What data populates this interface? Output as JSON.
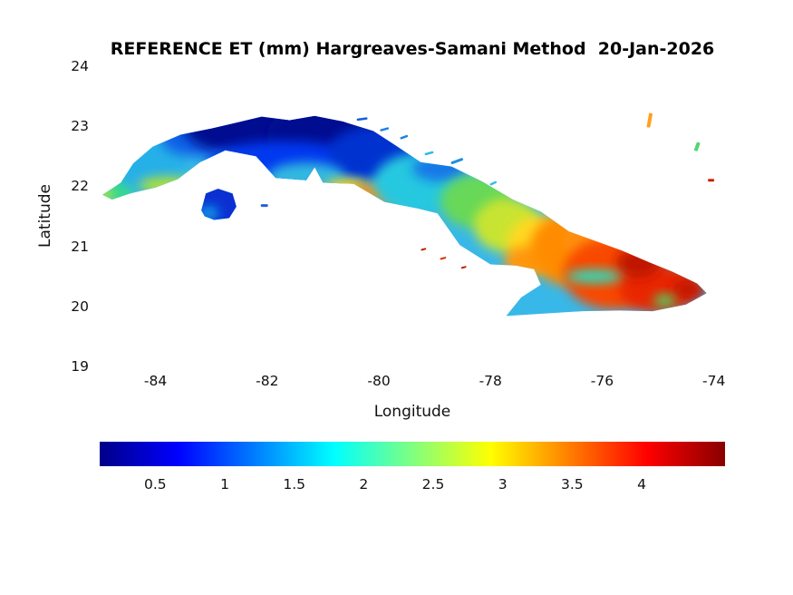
{
  "figure": {
    "title": "REFERENCE ET (mm) Hargreaves-Samani Method  20-Jan-2026",
    "xlabel": "Longitude",
    "ylabel": "Latitude"
  },
  "chart_data": {
    "type": "heatmap",
    "title": "REFERENCE ET (mm) Hargreaves-Samani Method  20-Jan-2026",
    "date_shown": "20-Jan-2026",
    "xlabel": "Longitude",
    "ylabel": "Latitude",
    "xlim": [
      -85.0,
      -73.8
    ],
    "ylim": [
      19,
      24
    ],
    "xticks": [
      -84,
      -82,
      -80,
      -78,
      -76,
      -74
    ],
    "yticks": [
      24,
      23,
      22,
      21,
      20,
      19
    ],
    "grid": false,
    "colorbar": {
      "orientation": "horizontal",
      "vmin": 0.1,
      "vmax": 4.6,
      "ticks": [
        0.5,
        1,
        1.5,
        2,
        2.5,
        3,
        3.5,
        4
      ],
      "colormap": "jet",
      "stops": [
        {
          "f": 0.0,
          "color": "#000089"
        },
        {
          "f": 0.125,
          "color": "#0000ff"
        },
        {
          "f": 0.375,
          "color": "#00ffff"
        },
        {
          "f": 0.625,
          "color": "#ffff00"
        },
        {
          "f": 0.875,
          "color": "#ff0000"
        },
        {
          "f": 1.0,
          "color": "#890000"
        }
      ]
    },
    "outline": {
      "cuba": [
        [
          -84.95,
          21.86
        ],
        [
          -84.62,
          22.06
        ],
        [
          -84.4,
          22.38
        ],
        [
          -84.05,
          22.66
        ],
        [
          -83.55,
          22.86
        ],
        [
          -83.0,
          22.96
        ],
        [
          -82.55,
          23.06
        ],
        [
          -82.1,
          23.16
        ],
        [
          -81.6,
          23.1
        ],
        [
          -81.15,
          23.17
        ],
        [
          -80.65,
          23.08
        ],
        [
          -80.1,
          22.92
        ],
        [
          -79.7,
          22.68
        ],
        [
          -79.25,
          22.4
        ],
        [
          -78.7,
          22.33
        ],
        [
          -78.15,
          22.08
        ],
        [
          -77.6,
          21.78
        ],
        [
          -77.1,
          21.58
        ],
        [
          -76.6,
          21.25
        ],
        [
          -76.1,
          21.08
        ],
        [
          -75.65,
          20.93
        ],
        [
          -75.15,
          20.73
        ],
        [
          -74.75,
          20.58
        ],
        [
          -74.3,
          20.38
        ],
        [
          -74.13,
          20.22
        ],
        [
          -74.5,
          20.03
        ],
        [
          -75.1,
          19.92
        ],
        [
          -75.7,
          19.93
        ],
        [
          -76.35,
          19.92
        ],
        [
          -77.05,
          19.88
        ],
        [
          -77.72,
          19.84
        ],
        [
          -77.45,
          20.15
        ],
        [
          -77.1,
          20.36
        ],
        [
          -77.22,
          20.62
        ],
        [
          -77.55,
          20.68
        ],
        [
          -78.0,
          20.7
        ],
        [
          -78.55,
          21.02
        ],
        [
          -78.95,
          21.55
        ],
        [
          -79.3,
          21.63
        ],
        [
          -79.9,
          21.74
        ],
        [
          -80.45,
          22.04
        ],
        [
          -81.0,
          22.06
        ],
        [
          -81.15,
          22.32
        ],
        [
          -81.3,
          22.1
        ],
        [
          -81.85,
          22.14
        ],
        [
          -82.2,
          22.5
        ],
        [
          -82.75,
          22.6
        ],
        [
          -83.2,
          22.4
        ],
        [
          -83.6,
          22.12
        ],
        [
          -84.0,
          21.98
        ],
        [
          -84.45,
          21.88
        ],
        [
          -84.78,
          21.78
        ]
      ],
      "isla_de_la_juventud": [
        [
          -83.18,
          21.6
        ],
        [
          -83.1,
          21.88
        ],
        [
          -82.88,
          21.96
        ],
        [
          -82.62,
          21.88
        ],
        [
          -82.55,
          21.66
        ],
        [
          -82.68,
          21.47
        ],
        [
          -82.95,
          21.44
        ],
        [
          -83.12,
          21.5
        ]
      ]
    },
    "field": {
      "base_color": "#38b8e8",
      "base_et_mm": 1.6,
      "isla_color": "#0c2fd2",
      "isla_et_mm": 0.6,
      "blobs": [
        {
          "lon": -84.78,
          "lat": 21.95,
          "rx": 0.4,
          "ry": 0.35,
          "color": "#38d890",
          "et_mm": 2.2
        },
        {
          "lon": -84.9,
          "lat": 21.86,
          "rx": 0.12,
          "ry": 0.08,
          "color": "#e8e428",
          "et_mm": 2.9
        },
        {
          "lon": -84.15,
          "lat": 22.4,
          "rx": 0.7,
          "ry": 0.45,
          "color": "#28b0e8",
          "et_mm": 1.5
        },
        {
          "lon": -83.8,
          "lat": 22.02,
          "rx": 0.5,
          "ry": 0.14,
          "color": "#b0e038",
          "et_mm": 2.5
        },
        {
          "lon": -83.3,
          "lat": 22.8,
          "rx": 0.6,
          "ry": 0.3,
          "color": "#1060e8",
          "et_mm": 1.0
        },
        {
          "lon": -82.2,
          "lat": 23.0,
          "rx": 1.3,
          "ry": 0.5,
          "color": "#000d90",
          "et_mm": 0.3
        },
        {
          "lon": -80.9,
          "lat": 22.85,
          "rx": 1.1,
          "ry": 0.55,
          "color": "#000d90",
          "et_mm": 0.3
        },
        {
          "lon": -81.7,
          "lat": 22.4,
          "rx": 1.4,
          "ry": 0.35,
          "color": "#0038f0",
          "et_mm": 0.8
        },
        {
          "lon": -80.1,
          "lat": 22.55,
          "rx": 0.8,
          "ry": 0.45,
          "color": "#0030d0",
          "et_mm": 0.7
        },
        {
          "lon": -81.3,
          "lat": 22.15,
          "rx": 0.7,
          "ry": 0.25,
          "color": "#30b8e0",
          "et_mm": 1.5
        },
        {
          "lon": -80.6,
          "lat": 22.0,
          "rx": 0.35,
          "ry": 0.12,
          "color": "#ffd818",
          "et_mm": 3.0
        },
        {
          "lon": -80.05,
          "lat": 21.88,
          "rx": 0.6,
          "ry": 0.16,
          "color": "#ff9010",
          "et_mm": 3.3
        },
        {
          "lon": -79.3,
          "lat": 22.05,
          "rx": 0.8,
          "ry": 0.5,
          "color": "#28c8e0",
          "et_mm": 1.7
        },
        {
          "lon": -78.9,
          "lat": 22.3,
          "rx": 0.5,
          "ry": 0.22,
          "color": "#1878e8",
          "et_mm": 1.0
        },
        {
          "lon": -78.25,
          "lat": 21.75,
          "rx": 0.65,
          "ry": 0.45,
          "color": "#68d858",
          "et_mm": 2.3
        },
        {
          "lon": -77.7,
          "lat": 21.35,
          "rx": 0.6,
          "ry": 0.45,
          "color": "#c8e430",
          "et_mm": 2.7
        },
        {
          "lon": -77.15,
          "lat": 21.05,
          "rx": 0.55,
          "ry": 0.45,
          "color": "#ffd820",
          "et_mm": 3.0
        },
        {
          "lon": -77.4,
          "lat": 20.75,
          "rx": 0.35,
          "ry": 0.25,
          "color": "#ff9810",
          "et_mm": 3.3
        },
        {
          "lon": -76.6,
          "lat": 20.95,
          "rx": 0.7,
          "ry": 0.6,
          "color": "#ff8c00",
          "et_mm": 3.4
        },
        {
          "lon": -76.2,
          "lat": 21.1,
          "rx": 0.5,
          "ry": 0.3,
          "color": "#ff9010",
          "et_mm": 3.3
        },
        {
          "lon": -75.8,
          "lat": 20.55,
          "rx": 0.9,
          "ry": 0.6,
          "color": "#f84800",
          "et_mm": 3.8
        },
        {
          "lon": -75.0,
          "lat": 20.3,
          "rx": 0.7,
          "ry": 0.4,
          "color": "#e82800",
          "et_mm": 4.0
        },
        {
          "lon": -75.35,
          "lat": 20.72,
          "rx": 0.4,
          "ry": 0.25,
          "color": "#c01800",
          "et_mm": 4.3
        },
        {
          "lon": -74.45,
          "lat": 20.28,
          "rx": 0.3,
          "ry": 0.18,
          "color": "#c81800",
          "et_mm": 4.3
        },
        {
          "lon": -76.15,
          "lat": 20.5,
          "rx": 0.5,
          "ry": 0.11,
          "color": "#28e0c0",
          "et_mm": 1.9
        },
        {
          "lon": -74.88,
          "lat": 20.1,
          "rx": 0.2,
          "ry": 0.1,
          "color": "#48d868",
          "et_mm": 2.3
        }
      ],
      "isla_blobs": [
        {
          "lon": -83.05,
          "lat": 21.55,
          "rx": 0.18,
          "ry": 0.12,
          "color": "#10a0e8",
          "et_mm": 1.3
        }
      ]
    },
    "specks": [
      {
        "lon": -80.3,
        "lat": 23.12,
        "w": 12,
        "h": 2.5,
        "rot": -8,
        "color": "#1060e0"
      },
      {
        "lon": -79.9,
        "lat": 22.95,
        "w": 10,
        "h": 2.5,
        "rot": -15,
        "color": "#2080e8"
      },
      {
        "lon": -79.55,
        "lat": 22.82,
        "w": 9,
        "h": 2.5,
        "rot": -20,
        "color": "#2080e8"
      },
      {
        "lon": -78.6,
        "lat": 22.42,
        "w": 14,
        "h": 3,
        "rot": -20,
        "color": "#2090e0"
      },
      {
        "lon": -79.1,
        "lat": 22.55,
        "w": 10,
        "h": 2.5,
        "rot": -15,
        "color": "#30b8e8"
      },
      {
        "lon": -77.95,
        "lat": 22.05,
        "w": 8,
        "h": 2.5,
        "rot": -25,
        "color": "#38c0e0"
      },
      {
        "lon": -82.05,
        "lat": 21.68,
        "w": 8,
        "h": 3,
        "rot": 0,
        "color": "#2060e0"
      },
      {
        "lon": -79.2,
        "lat": 20.95,
        "w": 6,
        "h": 2,
        "rot": -15,
        "color": "#c02000"
      },
      {
        "lon": -78.85,
        "lat": 20.8,
        "w": 7,
        "h": 2,
        "rot": -15,
        "color": "#d83000"
      },
      {
        "lon": -78.48,
        "lat": 20.65,
        "w": 6,
        "h": 2,
        "rot": -15,
        "color": "#c02000"
      },
      {
        "lon": -75.15,
        "lat": 23.1,
        "w": 4,
        "h": 16,
        "rot": 10,
        "color": "#ffa020"
      },
      {
        "lon": -74.3,
        "lat": 22.66,
        "w": 4,
        "h": 10,
        "rot": 20,
        "color": "#50d870"
      },
      {
        "lon": -74.05,
        "lat": 22.1,
        "w": 7,
        "h": 3,
        "rot": 0,
        "color": "#d02000"
      }
    ]
  }
}
